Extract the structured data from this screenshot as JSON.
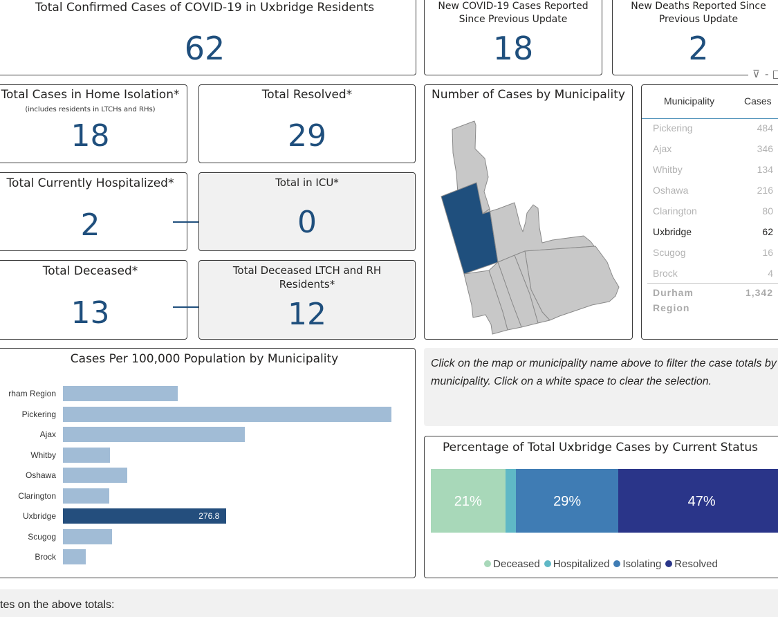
{
  "total_confirmed": {
    "title": "Total Confirmed Cases of COVID-19 in Uxbridge Residents",
    "value": "62"
  },
  "new_cases": {
    "title_line1": "New COVID-19 Cases Reported",
    "title_line2": "Since Previous Update",
    "value": "18"
  },
  "new_deaths": {
    "title_line1": "New Deaths Reported Since",
    "title_line2": "Previous Update",
    "value": "2"
  },
  "home_isolation": {
    "title": "Total Cases in Home Isolation*",
    "subtitle": "(includes residents in LTCHs and RHs)",
    "value": "18"
  },
  "resolved": {
    "title": "Total Resolved*",
    "value": "29"
  },
  "hospitalized": {
    "title": "Total Currently Hospitalized*",
    "value": "2"
  },
  "icu": {
    "title": "Total in ICU*",
    "value": "0"
  },
  "deceased": {
    "title": "Total Deceased*",
    "value": "13"
  },
  "deceased_ltch": {
    "title_line1": "Total Deceased LTCH and RH",
    "title_line2": "Residents*",
    "value": "12"
  },
  "map": {
    "title": "Number of Cases by Municipality"
  },
  "visual_header": {
    "filter_glyph": "⊽",
    "sep": "-"
  },
  "table": {
    "headers": [
      "Municipality",
      "Cases"
    ],
    "rows": [
      {
        "name": "Pickering",
        "cases": "484",
        "selected": false
      },
      {
        "name": "Ajax",
        "cases": "346",
        "selected": false
      },
      {
        "name": "Whitby",
        "cases": "134",
        "selected": false
      },
      {
        "name": "Oshawa",
        "cases": "216",
        "selected": false
      },
      {
        "name": "Clarington",
        "cases": "80",
        "selected": false
      },
      {
        "name": "Uxbridge",
        "cases": "62",
        "selected": true
      },
      {
        "name": "Scugog",
        "cases": "16",
        "selected": false
      },
      {
        "name": "Brock",
        "cases": "4",
        "selected": false
      }
    ],
    "total": {
      "name_line1": "Durham",
      "name_line2": "Region",
      "cases": "1,342"
    }
  },
  "instructions": {
    "text": "Click on the map or municipality name above to filter the case totals by municipality. Click on a white space to clear the selection."
  },
  "notes": {
    "text": "tes on the above totals:"
  },
  "colors": {
    "accent": "#1f4f7d",
    "bar": "#a1bcd6",
    "bar_selected": "#244e7d",
    "deceased": "#a8d8b9",
    "hospitalized": "#5fb8c6",
    "isolating": "#3f7cb4",
    "resolved": "#2a3589"
  },
  "chart_data": [
    {
      "type": "bar",
      "orientation": "horizontal",
      "title": "Cases Per 100,000 Population by Municipality",
      "categories": [
        "Durham Region",
        "Pickering",
        "Ajax",
        "Whitby",
        "Oshawa",
        "Clarington",
        "Uxbridge",
        "Scugog",
        "Brock"
      ],
      "category_labels": [
        "rham Region",
        "Pickering",
        "Ajax",
        "Whitby",
        "Oshawa",
        "Clarington",
        "Uxbridge",
        "Scugog",
        "Brock"
      ],
      "values": [
        194,
        557,
        308,
        80,
        109,
        79,
        276.8,
        83,
        39
      ],
      "highlight": "Uxbridge",
      "data_labels": {
        "Uxbridge": "276.8"
      },
      "xlim": [
        0,
        560
      ]
    },
    {
      "type": "bar",
      "orientation": "stacked-100",
      "title": "Percentage of Total Uxbridge Cases by Current Status",
      "series": [
        {
          "name": "Deceased",
          "value": 21,
          "label": "21%"
        },
        {
          "name": "Hospitalized",
          "value": 3,
          "label": ""
        },
        {
          "name": "Isolating",
          "value": 29,
          "label": "29%"
        },
        {
          "name": "Resolved",
          "value": 47,
          "label": "47%"
        }
      ],
      "legend": "bottom"
    }
  ]
}
